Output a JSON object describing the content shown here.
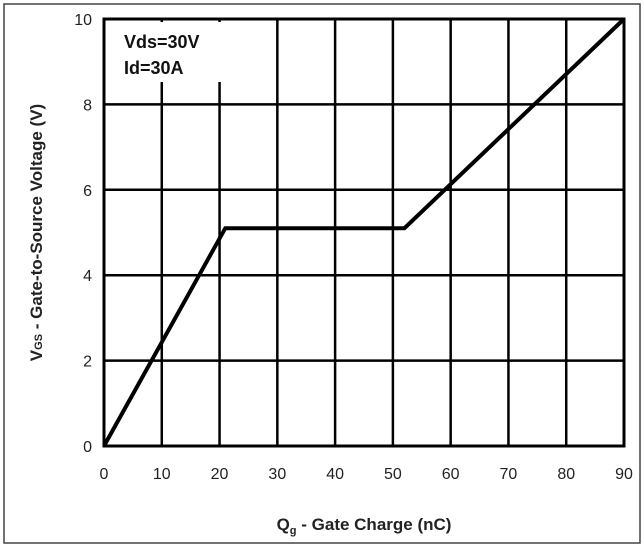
{
  "chart_data": {
    "type": "line",
    "title": "",
    "xlabel": {
      "symbol": "Q",
      "subscript": "g",
      "text": " - Gate Charge (nC)"
    },
    "ylabel": {
      "symbol": "V",
      "subscript": "GS",
      "text": " - Gate-to-Source Voltage (V)"
    },
    "xlim": [
      0,
      90
    ],
    "ylim": [
      0,
      10
    ],
    "xticks": [
      0,
      10,
      20,
      30,
      40,
      50,
      60,
      70,
      80,
      90
    ],
    "yticks": [
      0,
      2,
      4,
      6,
      8,
      10
    ],
    "grid": true,
    "annotations": [
      "Vds=30V",
      "Id=30A"
    ],
    "series": [
      {
        "x": [
          0,
          21,
          52,
          90
        ],
        "y": [
          0,
          5.1,
          5.1,
          10
        ],
        "color": "#000000"
      }
    ]
  }
}
